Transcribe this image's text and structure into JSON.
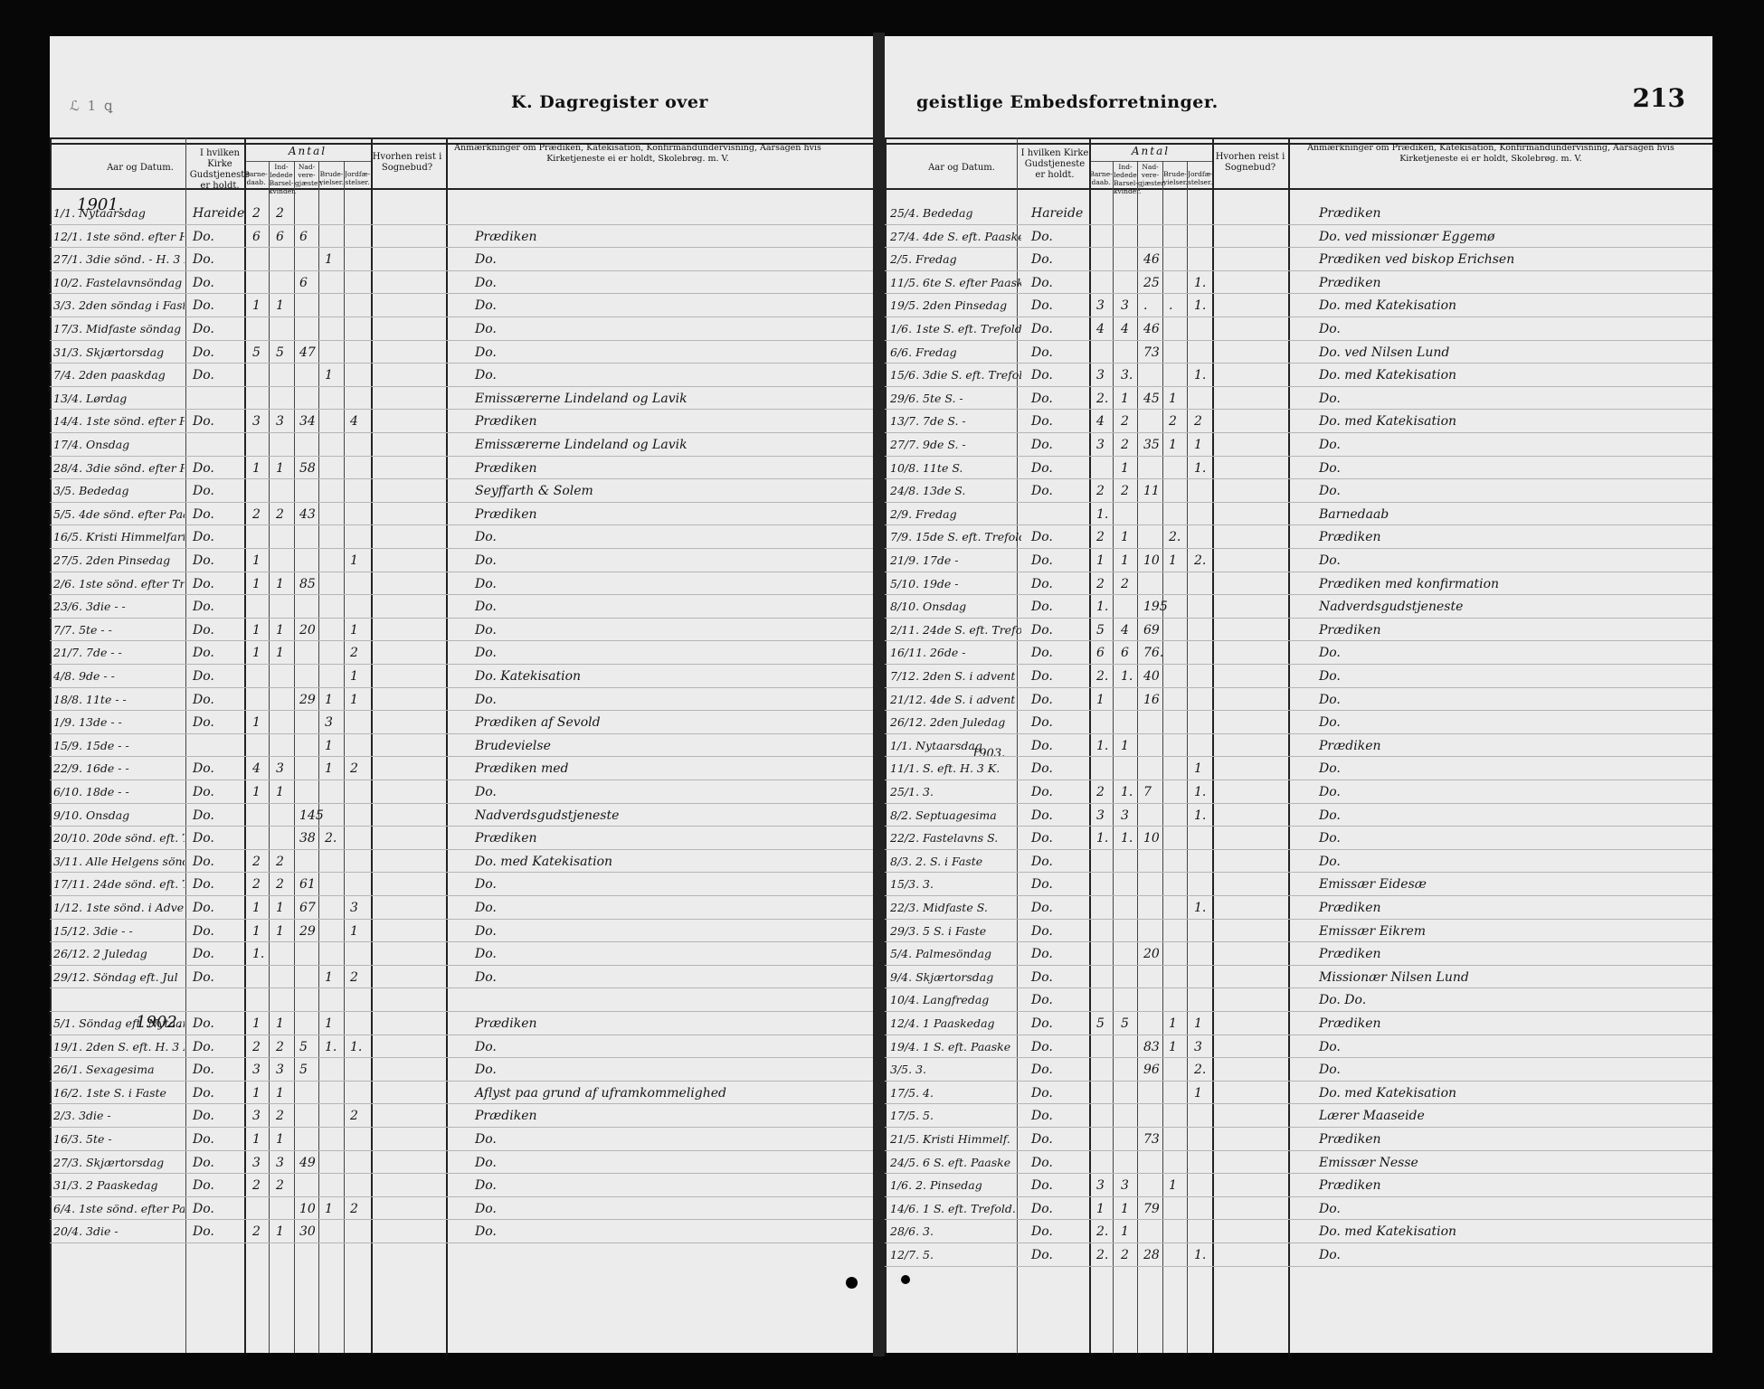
{
  "left_page": {
    "corner_mark": "ℒ 1 ꝗ",
    "title": "K.  Dagregister over",
    "headers": {
      "date": "Aar og Datum.",
      "church": "I hvilken Kirke Gudstjeneste er holdt.",
      "antal": "Antal",
      "baptisms": "Barne-daab.",
      "introduced": "Ind-ledede Barsel-kvinder.",
      "communicants": "Nad-vere-gjæster.",
      "weddings": "Brude-vielser.",
      "burials": "Jordfæ-stelser.",
      "travel": "Hvorhen reist i Sognebud?",
      "remarks": "Anmærkninger om Prædiken, Katekisation, Konfirmandundervisning, Aarsagen hvis Kirketjeneste ei er holdt, Skolebrøg. m. V."
    },
    "year_1901": "1901.",
    "year_1902": "1902.",
    "rows": [
      {
        "date": "1/1. Nytaarsdag",
        "church": "Hareide",
        "b": "2",
        "i": "2",
        "n": "",
        "w": "",
        "j": "",
        "r": ""
      },
      {
        "date": "12/1. 1ste sönd. efter H. 3 K.",
        "church": "Do.",
        "b": "6",
        "i": "6",
        "n": "6",
        "w": "",
        "j": "",
        "r": "Prædiken"
      },
      {
        "date": "27/1. 3die sönd. - H. 3 K.",
        "church": "Do.",
        "b": "",
        "i": "",
        "n": "",
        "w": "1",
        "j": "",
        "r": "Do."
      },
      {
        "date": "10/2. Fastelavnsöndag",
        "church": "Do.",
        "b": "",
        "i": "",
        "n": "6",
        "w": "",
        "j": "",
        "r": "Do."
      },
      {
        "date": "3/3. 2den söndag i Faste",
        "church": "Do.",
        "b": "1",
        "i": "1",
        "n": "",
        "w": "",
        "j": "",
        "r": "Do."
      },
      {
        "date": "17/3. Midfaste söndag",
        "church": "Do.",
        "b": "",
        "i": "",
        "n": "",
        "w": "",
        "j": "",
        "r": "Do."
      },
      {
        "date": "31/3. Skjærtorsdag",
        "church": "Do.",
        "b": "5",
        "i": "5",
        "n": "47",
        "w": "",
        "j": "",
        "r": "Do."
      },
      {
        "date": "7/4. 2den paaskdag",
        "church": "Do.",
        "b": "",
        "i": "",
        "n": "",
        "w": "1",
        "j": "",
        "r": "Do."
      },
      {
        "date": "13/4. Lørdag",
        "church": "",
        "b": "",
        "i": "",
        "n": "",
        "w": "",
        "j": "",
        "r": "Emissærerne Lindeland og Lavik"
      },
      {
        "date": "14/4. 1ste sönd. efter Paaske",
        "church": "Do.",
        "b": "3",
        "i": "3",
        "n": "34",
        "w": "",
        "j": "4",
        "r": "Prædiken"
      },
      {
        "date": "17/4. Onsdag",
        "church": "",
        "b": "",
        "i": "",
        "n": "",
        "w": "",
        "j": "",
        "r": "Emissærerne Lindeland og Lavik"
      },
      {
        "date": "28/4. 3die sönd. efter Paaske",
        "church": "Do.",
        "b": "1",
        "i": "1",
        "n": "58",
        "w": "",
        "j": "",
        "r": "Prædiken"
      },
      {
        "date": "3/5. Bededag",
        "church": "Do.",
        "b": "",
        "i": "",
        "n": "",
        "w": "",
        "j": "",
        "r": "Seyffarth & Solem"
      },
      {
        "date": "5/5. 4de sönd. efter Paaske",
        "church": "Do.",
        "b": "2",
        "i": "2",
        "n": "43",
        "w": "",
        "j": "",
        "r": "Prædiken"
      },
      {
        "date": "16/5. Kristi Himmelfartsdag",
        "church": "Do.",
        "b": "",
        "i": "",
        "n": "",
        "w": "",
        "j": "",
        "r": "Do."
      },
      {
        "date": "27/5. 2den Pinsedag",
        "church": "Do.",
        "b": "1",
        "i": "",
        "n": "",
        "w": "",
        "j": "1",
        "r": "Do."
      },
      {
        "date": "2/6. 1ste sönd. efter Trefoldigh.",
        "church": "Do.",
        "b": "1",
        "i": "1",
        "n": "85",
        "w": "",
        "j": "",
        "r": "Do."
      },
      {
        "date": "23/6. 3die - -",
        "church": "Do.",
        "b": "",
        "i": "",
        "n": "",
        "w": "",
        "j": "",
        "r": "Do."
      },
      {
        "date": "7/7. 5te - -",
        "church": "Do.",
        "b": "1",
        "i": "1",
        "n": "20",
        "w": "",
        "j": "1",
        "r": "Do."
      },
      {
        "date": "21/7. 7de - -",
        "church": "Do.",
        "b": "1",
        "i": "1",
        "n": "",
        "w": "",
        "j": "2",
        "r": "Do."
      },
      {
        "date": "4/8. 9de - -",
        "church": "Do.",
        "b": "",
        "i": "",
        "n": "",
        "w": "",
        "j": "1",
        "r": "Do.    Katekisation"
      },
      {
        "date": "18/8. 11te - -",
        "church": "Do.",
        "b": "",
        "i": "",
        "n": "29",
        "w": "1",
        "j": "1",
        "r": "Do."
      },
      {
        "date": "1/9. 13de - -",
        "church": "Do.",
        "b": "1",
        "i": "",
        "n": "",
        "w": "3",
        "j": "",
        "r": "Prædiken af Sevold"
      },
      {
        "date": "15/9. 15de - -",
        "church": "",
        "b": "",
        "i": "",
        "n": "",
        "w": "1",
        "j": "",
        "r": "Brudevielse"
      },
      {
        "date": "22/9. 16de - -",
        "church": "Do.",
        "b": "4",
        "i": "3",
        "n": "",
        "w": "1",
        "j": "2",
        "r": "Prædiken med"
      },
      {
        "date": "6/10. 18de - -",
        "church": "Do.",
        "b": "1",
        "i": "1",
        "n": "",
        "w": "",
        "j": "",
        "r": "Do."
      },
      {
        "date": "9/10. Onsdag",
        "church": "Do.",
        "b": "",
        "i": "",
        "n": "145",
        "w": "",
        "j": "",
        "r": "Nadverdsgudstjeneste"
      },
      {
        "date": "20/10. 20de sönd. eft. Trefoldighed",
        "church": "Do.",
        "b": "",
        "i": "",
        "n": "38",
        "w": "2.",
        "j": "",
        "r": "Prædiken"
      },
      {
        "date": "3/11. Alle Helgens söndag",
        "church": "Do.",
        "b": "2",
        "i": "2",
        "n": "",
        "w": "",
        "j": "",
        "r": "Do.    med Katekisation"
      },
      {
        "date": "17/11. 24de sönd. eft. Trefoldigh.",
        "church": "Do.",
        "b": "2",
        "i": "2",
        "n": "61",
        "w": "",
        "j": "",
        "r": "Do."
      },
      {
        "date": "1/12. 1ste sönd. i Advent",
        "church": "Do.",
        "b": "1",
        "i": "1",
        "n": "67",
        "w": "",
        "j": "3",
        "r": "Do."
      },
      {
        "date": "15/12. 3die - -",
        "church": "Do.",
        "b": "1",
        "i": "1",
        "n": "29",
        "w": "",
        "j": "1",
        "r": "Do."
      },
      {
        "date": "26/12. 2 Juledag",
        "church": "Do.",
        "b": "1.",
        "i": "",
        "n": "",
        "w": "",
        "j": "",
        "r": "Do."
      },
      {
        "date": "29/12. Söndag eft. Jul",
        "church": "Do.",
        "b": "",
        "i": "",
        "n": "",
        "w": "1",
        "j": "2",
        "r": "Do."
      },
      {
        "date": "",
        "church": "",
        "b": "",
        "i": "",
        "n": "",
        "w": "",
        "j": "",
        "r": ""
      },
      {
        "date": "5/1. Söndag eft. Nytaar",
        "church": "Do.",
        "b": "1",
        "i": "1",
        "n": "",
        "w": "1",
        "j": "",
        "r": "Prædiken"
      },
      {
        "date": "19/1. 2den S. eft. H. 3 K.",
        "church": "Do.",
        "b": "2",
        "i": "2",
        "n": "5",
        "w": "1.",
        "j": "1.",
        "r": "Do."
      },
      {
        "date": "26/1. Sexagesima",
        "church": "Do.",
        "b": "3",
        "i": "3",
        "n": "5",
        "w": "",
        "j": "",
        "r": "Do."
      },
      {
        "date": "16/2. 1ste S. i Faste",
        "church": "Do.",
        "b": "1",
        "i": "1",
        "n": "",
        "w": "",
        "j": "",
        "r": "Aflyst paa grund af uframkommelighed"
      },
      {
        "date": "2/3. 3die -",
        "church": "Do.",
        "b": "3",
        "i": "2",
        "n": "",
        "w": "",
        "j": "2",
        "r": "Prædiken"
      },
      {
        "date": "16/3. 5te -",
        "church": "Do.",
        "b": "1",
        "i": "1",
        "n": "",
        "w": "",
        "j": "",
        "r": "Do."
      },
      {
        "date": "27/3. Skjærtorsdag",
        "church": "Do.",
        "b": "3",
        "i": "3",
        "n": "49",
        "w": "",
        "j": "",
        "r": "Do."
      },
      {
        "date": "31/3. 2 Paaskedag",
        "church": "Do.",
        "b": "2",
        "i": "2",
        "n": "",
        "w": "",
        "j": "",
        "r": "Do."
      },
      {
        "date": "6/4. 1ste sönd. efter Paaske",
        "church": "Do.",
        "b": "",
        "i": "",
        "n": "10",
        "w": "1",
        "j": "2",
        "r": "Do."
      },
      {
        "date": "20/4. 3die -",
        "church": "Do.",
        "b": "2",
        "i": "1",
        "n": "30",
        "w": "",
        "j": "",
        "r": "Do."
      }
    ]
  },
  "right_page": {
    "title": "geistlige  Embedsforretninger.",
    "page_number": "213",
    "headers": {
      "date": "Aar og Datum.",
      "church": "I hvilken Kirke Gudstjeneste er holdt.",
      "antal": "Antal",
      "baptisms": "Barne-daab.",
      "introduced": "Ind-ledede Barsel-kvinder.",
      "communicants": "Nad-vere-gjæster.",
      "weddings": "Brude-vielser.",
      "burials": "Jordfæ-stelser.",
      "travel": "Hvorhen reist i Sognebud?",
      "remarks": "Anmærkninger om Prædiken, Katekisation, Konfirmandundervisning, Aarsagen hvis Kirketjeneste ei er holdt, Skolebrøg. m. V."
    },
    "year_1903": "1903.",
    "rows": [
      {
        "date": "25/4. Bededag",
        "church": "Hareide",
        "b": "",
        "i": "",
        "n": "",
        "w": "",
        "j": "",
        "r": "Prædiken"
      },
      {
        "date": "27/4. 4de S. eft. Paaske",
        "church": "Do.",
        "b": "",
        "i": "",
        "n": "",
        "w": "",
        "j": "",
        "r": "Do.  ved missionær Eggemø"
      },
      {
        "date": "2/5. Fredag",
        "church": "Do.",
        "b": "",
        "i": "",
        "n": "46",
        "w": "",
        "j": "",
        "r": "Prædiken ved biskop Erichsen"
      },
      {
        "date": "11/5. 6te S. efter Paaske",
        "church": "Do.",
        "b": "",
        "i": "",
        "n": "25",
        "w": "",
        "j": "1.",
        "r": "Prædiken"
      },
      {
        "date": "19/5. 2den Pinsedag",
        "church": "Do.",
        "b": "3",
        "i": "3",
        "n": ".",
        "w": ".",
        "j": "1.",
        "r": "Do.  med Katekisation"
      },
      {
        "date": "1/6. 1ste S. eft. Trefoldigh.",
        "church": "Do.",
        "b": "4",
        "i": "4",
        "n": "46",
        "w": "",
        "j": "",
        "r": "Do."
      },
      {
        "date": "6/6. Fredag",
        "church": "Do.",
        "b": "",
        "i": "",
        "n": "73",
        "w": "",
        "j": "",
        "r": "Do.  ved Nilsen Lund"
      },
      {
        "date": "15/6. 3die S. eft. Trefoldigh.",
        "church": "Do.",
        "b": "3",
        "i": "3.",
        "n": "",
        "w": "",
        "j": "1.",
        "r": "Do.  med Katekisation"
      },
      {
        "date": "29/6. 5te S. -",
        "church": "Do.",
        "b": "2.",
        "i": "1",
        "n": "45",
        "w": "1",
        "j": "",
        "r": "Do."
      },
      {
        "date": "13/7. 7de S. -",
        "church": "Do.",
        "b": "4",
        "i": "2",
        "n": "",
        "w": "2",
        "j": "2",
        "r": "Do.  med Katekisation"
      },
      {
        "date": "27/7. 9de S. -",
        "church": "Do.",
        "b": "3",
        "i": "2",
        "n": "35",
        "w": "1",
        "j": "1",
        "r": "Do."
      },
      {
        "date": "10/8. 11te S.",
        "church": "Do.",
        "b": "",
        "i": "1",
        "n": "",
        "w": "",
        "j": "1.",
        "r": "Do."
      },
      {
        "date": "24/8. 13de S.",
        "church": "Do.",
        "b": "2",
        "i": "2",
        "n": "11",
        "w": "",
        "j": "",
        "r": "Do."
      },
      {
        "date": "2/9. Fredag",
        "church": "",
        "b": "1.",
        "i": "",
        "n": "",
        "w": "",
        "j": "",
        "r": "Barnedaab"
      },
      {
        "date": "7/9. 15de S. eft. Trefoldigh.",
        "church": "Do.",
        "b": "2",
        "i": "1",
        "n": "",
        "w": "2.",
        "j": "",
        "r": "Prædiken"
      },
      {
        "date": "21/9. 17de -",
        "church": "Do.",
        "b": "1",
        "i": "1",
        "n": "10",
        "w": "1",
        "j": "2.",
        "r": "Do."
      },
      {
        "date": "5/10. 19de -",
        "church": "Do.",
        "b": "2",
        "i": "2",
        "n": "",
        "w": "",
        "j": "",
        "r": "Prædiken med konfirmation"
      },
      {
        "date": "8/10. Onsdag",
        "church": "Do.",
        "b": "1.",
        "i": "",
        "n": "195",
        "w": "",
        "j": "",
        "r": "Nadverdsgudstjeneste"
      },
      {
        "date": "2/11. 24de S. eft. Trefoldigh.",
        "church": "Do.",
        "b": "5",
        "i": "4",
        "n": "69",
        "w": "",
        "j": "",
        "r": "Prædiken"
      },
      {
        "date": "16/11. 26de -",
        "church": "Do.",
        "b": "6",
        "i": "6",
        "n": "76.",
        "w": "",
        "j": "",
        "r": "Do."
      },
      {
        "date": "7/12. 2den S. i advent",
        "church": "Do.",
        "b": "2.",
        "i": "1.",
        "n": "40",
        "w": "",
        "j": "",
        "r": "Do."
      },
      {
        "date": "21/12. 4de S. i advent",
        "church": "Do.",
        "b": "1",
        "i": "",
        "n": "16",
        "w": "",
        "j": "",
        "r": "Do."
      },
      {
        "date": "26/12. 2den Juledag",
        "church": "Do.",
        "b": "",
        "i": "",
        "n": "",
        "w": "",
        "j": "",
        "r": "Do."
      },
      {
        "date": "1/1. Nytaarsdag",
        "church": "Do.",
        "b": "1.",
        "i": "1",
        "n": "",
        "w": "",
        "j": "",
        "r": "Prædiken"
      },
      {
        "date": "11/1. S. eft. H. 3 K.",
        "church": "Do.",
        "b": "",
        "i": "",
        "n": "",
        "w": "",
        "j": "1",
        "r": "Do."
      },
      {
        "date": "25/1. 3.",
        "church": "Do.",
        "b": "2",
        "i": "1.",
        "n": "7",
        "w": "",
        "j": "1.",
        "r": "Do."
      },
      {
        "date": "8/2. Septuagesima",
        "church": "Do.",
        "b": "3",
        "i": "3",
        "n": "",
        "w": "",
        "j": "1.",
        "r": "Do."
      },
      {
        "date": "22/2. Fastelavns S.",
        "church": "Do.",
        "b": "1.",
        "i": "1.",
        "n": "10",
        "w": "",
        "j": "",
        "r": "Do."
      },
      {
        "date": "8/3. 2. S. i Faste",
        "church": "Do.",
        "b": "",
        "i": "",
        "n": "",
        "w": "",
        "j": "",
        "r": "Do."
      },
      {
        "date": "15/3. 3.",
        "church": "Do.",
        "b": "",
        "i": "",
        "n": "",
        "w": "",
        "j": "",
        "r": "Emissær Eidesæ"
      },
      {
        "date": "22/3. Midfaste S.",
        "church": "Do.",
        "b": "",
        "i": "",
        "n": "",
        "w": "",
        "j": "1.",
        "r": "Prædiken"
      },
      {
        "date": "29/3. 5 S. i Faste",
        "church": "Do.",
        "b": "",
        "i": "",
        "n": "",
        "w": "",
        "j": "",
        "r": "Emissær Eikrem"
      },
      {
        "date": "5/4. Palmesöndag",
        "church": "Do.",
        "b": "",
        "i": "",
        "n": "20",
        "w": "",
        "j": "",
        "r": "Prædiken"
      },
      {
        "date": "9/4. Skjærtorsdag",
        "church": "Do.",
        "b": "",
        "i": "",
        "n": "",
        "w": "",
        "j": "",
        "r": "Missionær Nilsen Lund"
      },
      {
        "date": "10/4. Langfredag",
        "church": "Do.",
        "b": "",
        "i": "",
        "n": "",
        "w": "",
        "j": "",
        "r": "Do.        Do."
      },
      {
        "date": "12/4. 1 Paaskedag",
        "church": "Do.",
        "b": "5",
        "i": "5",
        "n": "",
        "w": "1",
        "j": "1",
        "r": "Prædiken"
      },
      {
        "date": "19/4. 1 S. eft. Paaske",
        "church": "Do.",
        "b": "",
        "i": "",
        "n": "83",
        "w": "1",
        "j": "3",
        "r": "Do."
      },
      {
        "date": "3/5. 3.",
        "church": "Do.",
        "b": "",
        "i": "",
        "n": "96",
        "w": "",
        "j": "2.",
        "r": "Do."
      },
      {
        "date": "17/5. 4.",
        "church": "Do.",
        "b": "",
        "i": "",
        "n": "",
        "w": "",
        "j": "1",
        "r": "Do.  med Katekisation"
      },
      {
        "date": "17/5. 5.",
        "church": "Do.",
        "b": "",
        "i": "",
        "n": "",
        "w": "",
        "j": "",
        "r": "Lærer Maaseide"
      },
      {
        "date": "21/5. Kristi Himmelf.",
        "church": "Do.",
        "b": "",
        "i": "",
        "n": "73",
        "w": "",
        "j": "",
        "r": "Prædiken"
      },
      {
        "date": "24/5. 6 S. eft. Paaske",
        "church": "Do.",
        "b": "",
        "i": "",
        "n": "",
        "w": "",
        "j": "",
        "r": "Emissær Nesse"
      },
      {
        "date": "1/6. 2. Pinsedag",
        "church": "Do.",
        "b": "3",
        "i": "3",
        "n": "",
        "w": "1",
        "j": "",
        "r": "Prædiken"
      },
      {
        "date": "14/6. 1 S. eft. Trefold.",
        "church": "Do.",
        "b": "1",
        "i": "1",
        "n": "79",
        "w": "",
        "j": "",
        "r": "Do."
      },
      {
        "date": "28/6. 3.",
        "church": "Do.",
        "b": "2.",
        "i": "1",
        "n": "",
        "w": "",
        "j": "",
        "r": "Do.  med Katekisation"
      },
      {
        "date": "12/7. 5.",
        "church": "Do.",
        "b": "2.",
        "i": "2",
        "n": "28",
        "w": "",
        "j": "1.",
        "r": "Do."
      }
    ]
  }
}
